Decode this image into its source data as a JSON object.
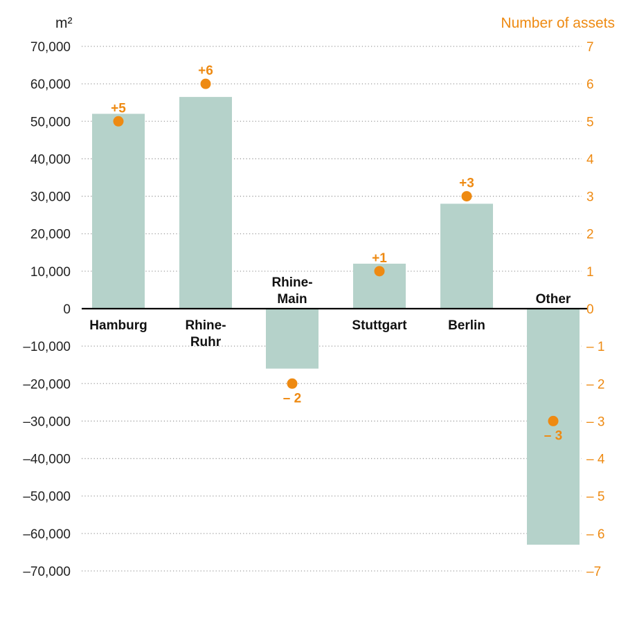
{
  "chart_data": {
    "type": "bar",
    "categories": [
      "Hamburg",
      "Rhine-Ruhr",
      "Rhine-Main",
      "Stuttgart",
      "Berlin",
      "Other"
    ],
    "category_lines": [
      [
        "Hamburg"
      ],
      [
        "Rhine-",
        "Ruhr"
      ],
      [
        "Rhine-",
        "Main"
      ],
      [
        "Stuttgart"
      ],
      [
        "Berlin"
      ],
      [
        "Other"
      ]
    ],
    "series": [
      {
        "axis": "left",
        "values": [
          52000,
          56500,
          -16000,
          12000,
          28000,
          -63000
        ]
      },
      {
        "axis": "right",
        "values": [
          5,
          6,
          -2,
          1,
          3,
          -3
        ],
        "labels": [
          "+5",
          "+6",
          "– 2",
          "+1",
          "+3",
          "– 3"
        ]
      }
    ],
    "ylabel": "m²",
    "ylabel_right": "Number of assets",
    "ylim": [
      -70000,
      70000
    ],
    "ylim_right": [
      -7,
      7
    ],
    "yticks": [
      "70,000",
      "60,000",
      "50,000",
      "40,000",
      "30,000",
      "20,000",
      "10,000",
      "0",
      "–10,000",
      "–20,000",
      "–30,000",
      "–40,000",
      "–50,000",
      "–60,000",
      "–70,000"
    ],
    "yticks_right": [
      "7",
      "6",
      "5",
      "4",
      "3",
      "2",
      "1",
      "0",
      "– 1",
      "– 2",
      "– 3",
      "– 4",
      "– 5",
      "– 6",
      "–7"
    ],
    "grid": "dotted",
    "colors": {
      "bar": "#b5d2ca",
      "point": "#ee8a12",
      "right_axis": "#ee8a12",
      "grid": "#9a9a9a",
      "axis": "#000000"
    }
  }
}
